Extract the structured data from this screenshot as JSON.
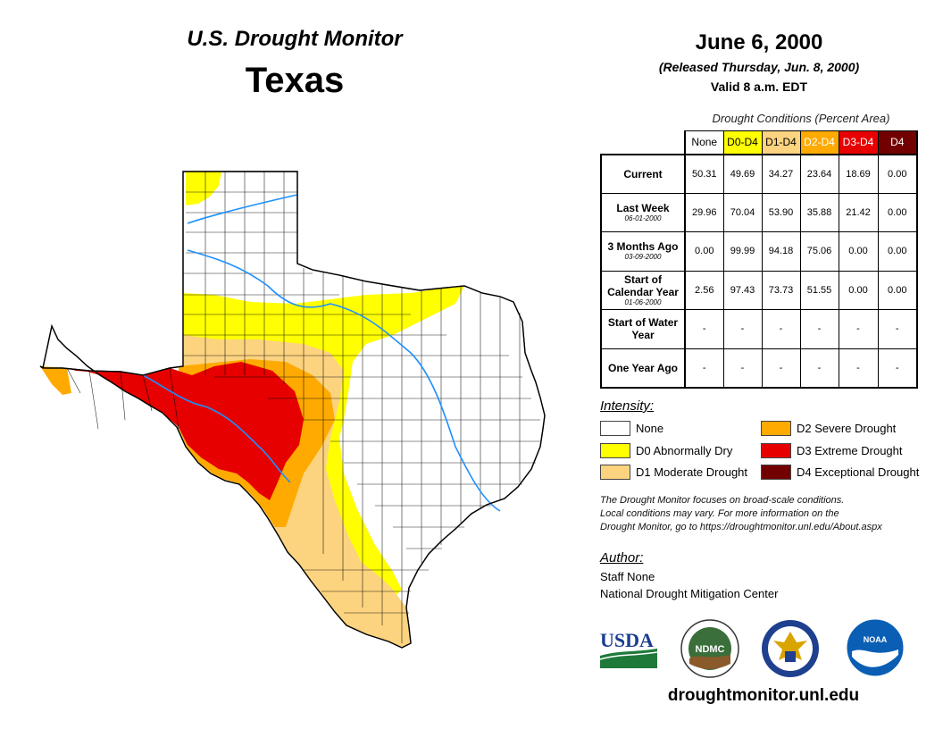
{
  "header": {
    "title": "U.S. Drought Monitor",
    "state": "Texas",
    "date": "June 6, 2000",
    "released": "(Released Thursday, Jun. 8, 2000)",
    "valid": "Valid 8 a.m. EDT"
  },
  "table": {
    "caption": "Drought Conditions (Percent Area)",
    "columns": [
      {
        "label": "None",
        "color": "#ffffff",
        "text_color": "#000000"
      },
      {
        "label": "D0-D4",
        "color": "#ffff00",
        "text_color": "#000000"
      },
      {
        "label": "D1-D4",
        "color": "#fcd37f",
        "text_color": "#000000"
      },
      {
        "label": "D2-D4",
        "color": "#ffaa00",
        "text_color": "#ffffff"
      },
      {
        "label": "D3-D4",
        "color": "#e60000",
        "text_color": "#ffffff"
      },
      {
        "label": "D4",
        "color": "#730000",
        "text_color": "#ffffff"
      }
    ],
    "rows": [
      {
        "label": "Current",
        "sub": "",
        "values": [
          "50.31",
          "49.69",
          "34.27",
          "23.64",
          "18.69",
          "0.00"
        ]
      },
      {
        "label": "Last Week",
        "sub": "06-01-2000",
        "values": [
          "29.96",
          "70.04",
          "53.90",
          "35.88",
          "21.42",
          "0.00"
        ]
      },
      {
        "label": "3 Months Ago",
        "sub": "03-09-2000",
        "values": [
          "0.00",
          "99.99",
          "94.18",
          "75.06",
          "0.00",
          "0.00"
        ]
      },
      {
        "label": "Start of Calendar Year",
        "sub": "01-06-2000",
        "values": [
          "2.56",
          "97.43",
          "73.73",
          "51.55",
          "0.00",
          "0.00"
        ]
      },
      {
        "label": "Start of Water Year",
        "sub": "",
        "values": [
          "-",
          "-",
          "-",
          "-",
          "-",
          "-"
        ]
      },
      {
        "label": "One Year Ago",
        "sub": "",
        "values": [
          "-",
          "-",
          "-",
          "-",
          "-",
          "-"
        ]
      }
    ]
  },
  "legend": {
    "title": "Intensity:",
    "items": [
      {
        "label": "None",
        "color": "#ffffff"
      },
      {
        "label": "D0 Abnormally Dry",
        "color": "#ffff00"
      },
      {
        "label": "D1 Moderate Drought",
        "color": "#fcd37f"
      },
      {
        "label": "D2 Severe Drought",
        "color": "#ffaa00"
      },
      {
        "label": "D3 Extreme Drought",
        "color": "#e60000"
      },
      {
        "label": "D4 Exceptional Drought",
        "color": "#730000"
      }
    ]
  },
  "disclaimer": {
    "line1": "The Drought Monitor focuses on broad-scale conditions.",
    "line2": "Local conditions may vary. For more information on the",
    "line3": "Drought Monitor, go to https://droughtmonitor.unl.edu/About.aspx"
  },
  "author": {
    "label": "Author:",
    "name": "Staff None",
    "org": "National Drought Mitigation Center"
  },
  "logos": {
    "usda": "USDA",
    "ndmc": "NDMC",
    "noaa": "NOAA"
  },
  "footer_url": "droughtmonitor.unl.edu",
  "map_colors": {
    "none": "#ffffff",
    "d0": "#ffff00",
    "d1": "#fcd37f",
    "d2": "#ffaa00",
    "d3": "#e60000",
    "river": "#1e90ff",
    "border": "#000000"
  }
}
